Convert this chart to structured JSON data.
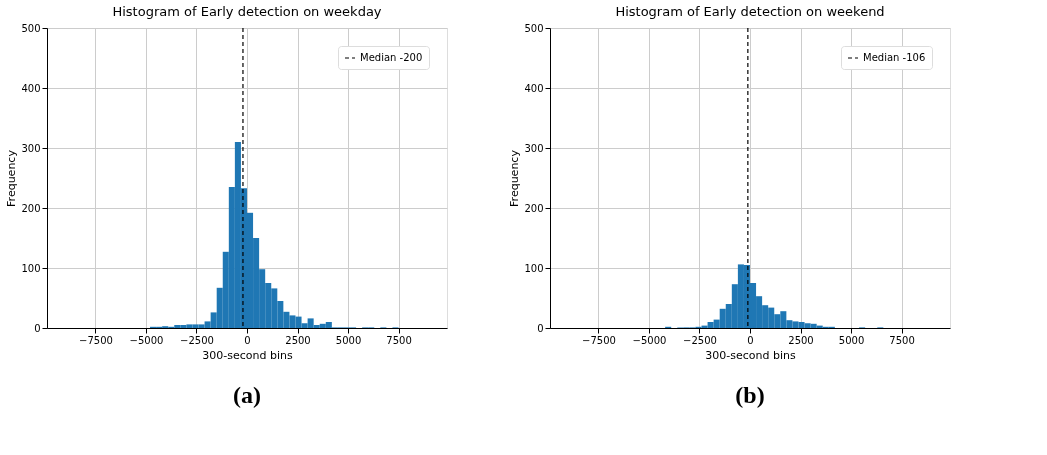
{
  "chart_data": [
    {
      "type": "histogram",
      "title": "Histogram of Early detection on weekday",
      "xlabel": "300-second bins",
      "ylabel": "Frequency",
      "color": "#1f77b4",
      "bins": [
        -4800,
        -4500,
        -4200,
        -3900,
        -3600,
        -3300,
        -3000,
        -2700,
        -2400,
        -2100,
        -1800,
        -1500,
        -1200,
        -900,
        -600,
        -300,
        0,
        300,
        600,
        900,
        1200,
        1500,
        1800,
        2100,
        2400,
        2700,
        3000,
        3300,
        3600,
        3900,
        4200,
        4500,
        4800,
        5100,
        5400,
        5700,
        6000,
        6300,
        6600,
        6900,
        7200,
        7500
      ],
      "values": [
        2,
        2,
        3,
        2,
        5,
        5,
        6,
        6,
        6,
        11,
        26,
        67,
        127,
        235,
        310,
        233,
        192,
        150,
        98,
        75,
        66,
        45,
        27,
        21,
        19,
        8,
        16,
        5,
        7,
        10,
        1,
        1,
        1,
        1,
        0,
        1,
        1,
        0,
        1,
        0,
        1
      ],
      "xlim": [
        -9900,
        9900
      ],
      "xticks": [
        -7500,
        -5000,
        -2500,
        0,
        2500,
        5000,
        7500
      ],
      "ylim": [
        0,
        500
      ],
      "yticks": [
        0,
        100,
        200,
        300,
        400,
        500
      ],
      "grid": true,
      "legend": "top right",
      "ref_lines": [
        {
          "axis": "x",
          "value": -200,
          "label": "Median -200",
          "color": "#000000",
          "line_style": "dashed"
        }
      ],
      "annotations": [
        "(a)"
      ]
    },
    {
      "type": "histogram",
      "title": "Histogram of Early detection on weekend",
      "xlabel": "300-second bins",
      "ylabel": "Frequency",
      "color": "#1f77b4",
      "bins": [
        -4200,
        -3900,
        -3600,
        -3300,
        -3000,
        -2700,
        -2400,
        -2100,
        -1800,
        -1500,
        -1200,
        -900,
        -600,
        -300,
        0,
        300,
        600,
        900,
        1200,
        1500,
        1800,
        2100,
        2400,
        2700,
        3000,
        3300,
        3600,
        3900,
        4200,
        4500,
        4800,
        5100,
        5400,
        5700,
        6000,
        6300,
        6600
      ],
      "values": [
        2,
        0,
        1,
        1,
        1,
        2,
        4,
        10,
        14,
        32,
        40,
        73,
        106,
        105,
        75,
        53,
        38,
        34,
        23,
        28,
        13,
        11,
        10,
        8,
        7,
        4,
        2,
        2,
        0,
        0,
        0,
        0,
        1,
        0,
        0,
        1
      ],
      "xlim": [
        -9900,
        9900
      ],
      "xticks": [
        -7500,
        -5000,
        -2500,
        0,
        2500,
        5000,
        7500
      ],
      "ylim": [
        0,
        500
      ],
      "yticks": [
        0,
        100,
        200,
        300,
        400,
        500
      ],
      "grid": true,
      "legend": "top right",
      "ref_lines": [
        {
          "axis": "x",
          "value": -106,
          "label": "Median -106",
          "color": "#000000",
          "line_style": "dashed"
        }
      ],
      "annotations": [
        "(b)"
      ]
    }
  ]
}
